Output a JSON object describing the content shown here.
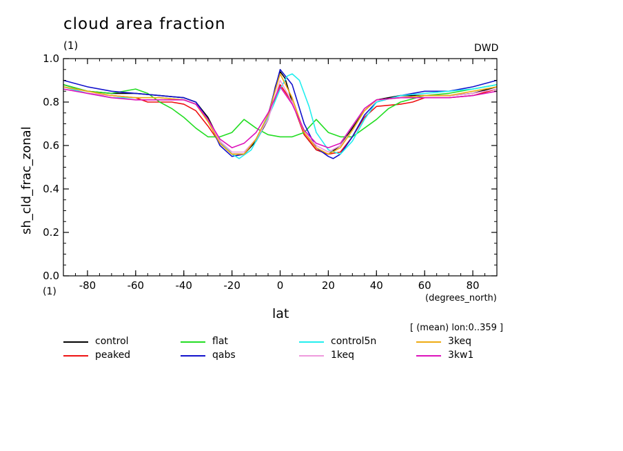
{
  "chart_data": {
    "type": "line",
    "title": "cloud area fraction",
    "units_label": "(1)",
    "source_label": "DWD",
    "ylabel": "sh_cld_frac_zonal",
    "xlabel": "lat",
    "xunits": "(degrees_north)",
    "bottom_units": "(1)",
    "subtitle": "[ (mean) lon:0..359 ]",
    "xlim": [
      -90,
      90
    ],
    "ylim": [
      0.0,
      1.0
    ],
    "xticks": [
      -80,
      -60,
      -40,
      -20,
      0,
      20,
      40,
      60,
      80
    ],
    "xtick_labels": [
      "-80",
      "-60",
      "-40",
      "-20",
      "0",
      "20",
      "40",
      "60",
      "80"
    ],
    "yticks": [
      0.0,
      0.2,
      0.4,
      0.6,
      0.8,
      1.0
    ],
    "ytick_labels": [
      "0.0",
      "0.2",
      "0.4",
      "0.6",
      "0.8",
      "1.0"
    ],
    "grid": false,
    "legend_position": "bottom",
    "series": [
      {
        "name": "control",
        "color": "#000000",
        "x": [
          -90,
          -80,
          -70,
          -60,
          -50,
          -40,
          -35,
          -30,
          -25,
          -20,
          -15,
          -10,
          -5,
          -2,
          0,
          2,
          5,
          10,
          15,
          20,
          25,
          30,
          35,
          40,
          50,
          60,
          70,
          80,
          90
        ],
        "y": [
          0.88,
          0.85,
          0.84,
          0.84,
          0.83,
          0.82,
          0.8,
          0.73,
          0.62,
          0.56,
          0.56,
          0.62,
          0.72,
          0.87,
          0.94,
          0.91,
          0.8,
          0.65,
          0.58,
          0.56,
          0.6,
          0.68,
          0.76,
          0.81,
          0.83,
          0.83,
          0.83,
          0.84,
          0.87
        ]
      },
      {
        "name": "peaked",
        "color": "#ee1111",
        "x": [
          -90,
          -80,
          -70,
          -60,
          -55,
          -45,
          -40,
          -35,
          -30,
          -25,
          -20,
          -15,
          -10,
          -5,
          0,
          5,
          10,
          15,
          20,
          25,
          30,
          35,
          40,
          50,
          55,
          60,
          70,
          80,
          90
        ],
        "y": [
          0.87,
          0.84,
          0.83,
          0.82,
          0.8,
          0.8,
          0.79,
          0.76,
          0.69,
          0.61,
          0.56,
          0.56,
          0.63,
          0.73,
          0.88,
          0.8,
          0.65,
          0.58,
          0.56,
          0.57,
          0.64,
          0.73,
          0.78,
          0.79,
          0.8,
          0.82,
          0.82,
          0.83,
          0.86
        ]
      },
      {
        "name": "flat",
        "color": "#22dd22",
        "x": [
          -90,
          -80,
          -70,
          -60,
          -55,
          -50,
          -45,
          -40,
          -35,
          -30,
          -25,
          -20,
          -15,
          -10,
          -5,
          0,
          5,
          10,
          15,
          20,
          25,
          30,
          35,
          40,
          45,
          50,
          60,
          70,
          80,
          90
        ],
        "y": [
          0.88,
          0.85,
          0.84,
          0.86,
          0.84,
          0.8,
          0.77,
          0.73,
          0.68,
          0.64,
          0.64,
          0.66,
          0.72,
          0.68,
          0.65,
          0.64,
          0.64,
          0.66,
          0.72,
          0.66,
          0.64,
          0.64,
          0.68,
          0.72,
          0.77,
          0.8,
          0.83,
          0.84,
          0.86,
          0.88
        ]
      },
      {
        "name": "qabs",
        "color": "#1111cc",
        "x": [
          -90,
          -80,
          -70,
          -60,
          -50,
          -40,
          -35,
          -30,
          -25,
          -20,
          -15,
          -10,
          -5,
          0,
          5,
          10,
          15,
          20,
          22,
          25,
          30,
          35,
          40,
          50,
          60,
          70,
          80,
          90
        ],
        "y": [
          0.9,
          0.87,
          0.85,
          0.84,
          0.83,
          0.82,
          0.8,
          0.72,
          0.6,
          0.55,
          0.56,
          0.63,
          0.74,
          0.95,
          0.88,
          0.7,
          0.59,
          0.55,
          0.54,
          0.56,
          0.64,
          0.74,
          0.8,
          0.83,
          0.85,
          0.85,
          0.87,
          0.9
        ]
      },
      {
        "name": "control5n",
        "color": "#22eeee",
        "x": [
          -90,
          -80,
          -70,
          -60,
          -50,
          -40,
          -35,
          -30,
          -25,
          -20,
          -17,
          -12,
          -8,
          -3,
          0,
          3,
          5,
          8,
          12,
          15,
          20,
          25,
          30,
          35,
          40,
          50,
          60,
          70,
          80,
          90
        ],
        "y": [
          0.87,
          0.84,
          0.82,
          0.82,
          0.82,
          0.81,
          0.79,
          0.72,
          0.62,
          0.56,
          0.54,
          0.58,
          0.66,
          0.78,
          0.86,
          0.92,
          0.93,
          0.9,
          0.78,
          0.66,
          0.58,
          0.56,
          0.62,
          0.72,
          0.8,
          0.83,
          0.84,
          0.85,
          0.86,
          0.88
        ]
      },
      {
        "name": "1keq",
        "color": "#ee99dd",
        "x": [
          -90,
          -80,
          -70,
          -60,
          -50,
          -40,
          -35,
          -30,
          -25,
          -20,
          -15,
          -10,
          -5,
          0,
          5,
          10,
          15,
          20,
          25,
          30,
          35,
          40,
          50,
          60,
          70,
          80,
          90
        ],
        "y": [
          0.86,
          0.84,
          0.83,
          0.82,
          0.82,
          0.81,
          0.79,
          0.72,
          0.62,
          0.57,
          0.57,
          0.63,
          0.72,
          0.9,
          0.8,
          0.66,
          0.6,
          0.57,
          0.6,
          0.67,
          0.76,
          0.81,
          0.82,
          0.83,
          0.83,
          0.84,
          0.86
        ]
      },
      {
        "name": "3keq",
        "color": "#eeaa11",
        "x": [
          -90,
          -80,
          -70,
          -60,
          -50,
          -40,
          -35,
          -30,
          -25,
          -20,
          -15,
          -10,
          -5,
          0,
          5,
          10,
          15,
          20,
          25,
          30,
          35,
          40,
          50,
          60,
          70,
          80,
          90
        ],
        "y": [
          0.87,
          0.85,
          0.83,
          0.82,
          0.82,
          0.81,
          0.79,
          0.71,
          0.61,
          0.56,
          0.56,
          0.63,
          0.74,
          0.93,
          0.82,
          0.66,
          0.59,
          0.56,
          0.59,
          0.67,
          0.76,
          0.81,
          0.82,
          0.83,
          0.83,
          0.85,
          0.87
        ]
      },
      {
        "name": "3kw1",
        "color": "#dd11bb",
        "x": [
          -90,
          -80,
          -70,
          -60,
          -50,
          -40,
          -35,
          -30,
          -25,
          -20,
          -15,
          -10,
          -5,
          0,
          5,
          10,
          15,
          20,
          25,
          30,
          35,
          40,
          50,
          60,
          70,
          80,
          90
        ],
        "y": [
          0.86,
          0.84,
          0.82,
          0.81,
          0.81,
          0.81,
          0.79,
          0.72,
          0.63,
          0.59,
          0.61,
          0.66,
          0.75,
          0.87,
          0.79,
          0.67,
          0.61,
          0.59,
          0.61,
          0.69,
          0.77,
          0.81,
          0.82,
          0.82,
          0.82,
          0.83,
          0.85
        ]
      }
    ]
  }
}
